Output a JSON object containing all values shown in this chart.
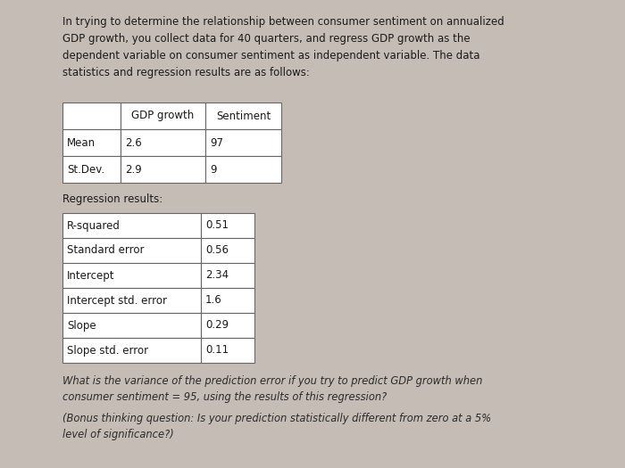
{
  "bg_color": "#c5bdb5",
  "text_color": "#1a1a1a",
  "intro_text": "In trying to determine the relationship between consumer sentiment on annualized\nGDP growth, you collect data for 40 quarters, and regress GDP growth as the\ndependent variable on consumer sentiment as independent variable. The data\nstatistics and regression results are as follows:",
  "table1_headers": [
    "",
    "GDP growth",
    "Sentiment"
  ],
  "table1_rows": [
    [
      "Mean",
      "2.6",
      "97"
    ],
    [
      "St.Dev.",
      "2.9",
      "9"
    ]
  ],
  "regression_label": "Regression results:",
  "table2_rows": [
    [
      "R-squared",
      "0.51"
    ],
    [
      "Standard error",
      "0.56"
    ],
    [
      "Intercept",
      "2.34"
    ],
    [
      "Intercept std. error",
      "1.6"
    ],
    [
      "Slope",
      "0.29"
    ],
    [
      "Slope std. error",
      "0.11"
    ]
  ],
  "question_text": "What is the variance of the prediction error if you try to predict GDP growth when\nconsumer sentiment = 95, using the results of this regression?",
  "bonus_text": "(Bonus thinking question: Is your prediction statistically different from zero at a 5%\nlevel of significance?)"
}
